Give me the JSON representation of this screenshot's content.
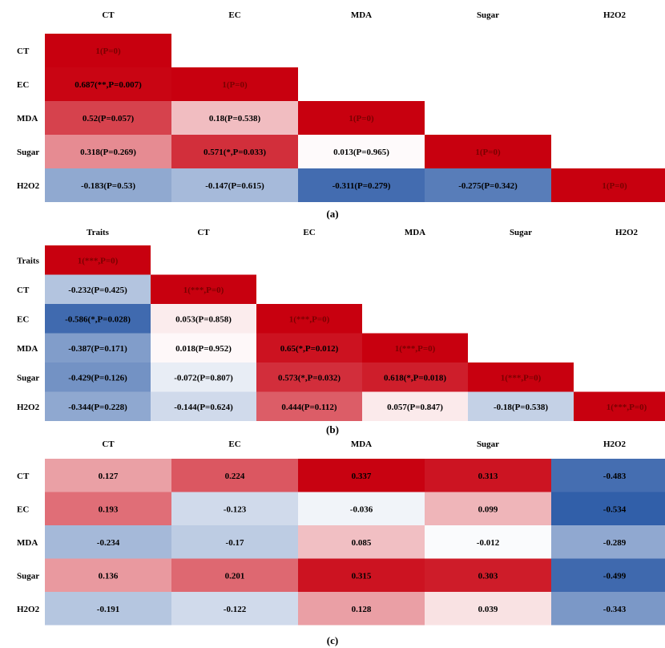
{
  "colors": {
    "positive_max": "#c8000f",
    "neutral": "#ffffff",
    "negative_max": "#2b5aa6",
    "diagonal": "#c8000f",
    "label_on_dark": "#7a0000",
    "label_default": "#000000"
  },
  "chart_data": [
    {
      "id": "a",
      "type": "heatmap",
      "shape": "lower-triangle",
      "caption": "(a)",
      "title": "",
      "color_range": [
        -0.35,
        0.7
      ],
      "columns": [
        "CT",
        "EC",
        "MDA",
        "Sugar",
        "H2O2"
      ],
      "rows": [
        "CT",
        "EC",
        "MDA",
        "Sugar",
        "H2O2"
      ],
      "cells": [
        [
          {
            "value": 1,
            "label": "1(P=0)"
          }
        ],
        [
          {
            "value": 0.687,
            "label": "0.687(**,P=0.007)"
          },
          {
            "value": 1,
            "label": "1(P=0)"
          }
        ],
        [
          {
            "value": 0.52,
            "label": "0.52(P=0.057)"
          },
          {
            "value": 0.18,
            "label": "0.18(P=0.538)"
          },
          {
            "value": 1,
            "label": "1(P=0)"
          }
        ],
        [
          {
            "value": 0.318,
            "label": "0.318(P=0.269)"
          },
          {
            "value": 0.571,
            "label": "0.571(*,P=0.033)"
          },
          {
            "value": 0.013,
            "label": "0.013(P=0.965)"
          },
          {
            "value": 1,
            "label": "1(P=0)"
          }
        ],
        [
          {
            "value": -0.183,
            "label": "-0.183(P=0.53)"
          },
          {
            "value": -0.147,
            "label": "-0.147(P=0.615)"
          },
          {
            "value": -0.311,
            "label": "-0.311(P=0.279)"
          },
          {
            "value": -0.275,
            "label": "-0.275(P=0.342)"
          },
          {
            "value": 1,
            "label": "1(P=0)"
          }
        ]
      ]
    },
    {
      "id": "b",
      "type": "heatmap",
      "shape": "lower-triangle",
      "caption": "(b)",
      "title": "",
      "color_range": [
        -0.65,
        0.7
      ],
      "columns": [
        "Traits",
        "CT",
        "EC",
        "MDA",
        "Sugar",
        "H2O2"
      ],
      "rows": [
        "Traits",
        "CT",
        "EC",
        "MDA",
        "Sugar",
        "H2O2"
      ],
      "cells": [
        [
          {
            "value": 1,
            "label": "1(***,P=0)"
          }
        ],
        [
          {
            "value": -0.232,
            "label": "-0.232(P=0.425)"
          },
          {
            "value": 1,
            "label": "1(***,P=0)"
          }
        ],
        [
          {
            "value": -0.586,
            "label": "-0.586(*,P=0.028)"
          },
          {
            "value": 0.053,
            "label": "0.053(P=0.858)"
          },
          {
            "value": 1,
            "label": "1(***,P=0)"
          }
        ],
        [
          {
            "value": -0.387,
            "label": "-0.387(P=0.171)"
          },
          {
            "value": 0.018,
            "label": "0.018(P=0.952)"
          },
          {
            "value": 0.65,
            "label": "0.65(*,P=0.012)"
          },
          {
            "value": 1,
            "label": "1(***,P=0)"
          }
        ],
        [
          {
            "value": -0.429,
            "label": "-0.429(P=0.126)"
          },
          {
            "value": -0.072,
            "label": "-0.072(P=0.807)"
          },
          {
            "value": 0.573,
            "label": "0.573(*,P=0.032)"
          },
          {
            "value": 0.618,
            "label": "0.618(*,P=0.018)"
          },
          {
            "value": 1,
            "label": "1(***,P=0)"
          }
        ],
        [
          {
            "value": -0.344,
            "label": "-0.344(P=0.228)"
          },
          {
            "value": -0.144,
            "label": "-0.144(P=0.624)"
          },
          {
            "value": 0.444,
            "label": "0.444(P=0.112)"
          },
          {
            "value": 0.057,
            "label": "0.057(P=0.847)"
          },
          {
            "value": -0.18,
            "label": "-0.18(P=0.538)"
          },
          {
            "value": 1,
            "label": "1(***,P=0)"
          }
        ]
      ]
    },
    {
      "id": "c",
      "type": "heatmap",
      "shape": "full",
      "caption": "(c)",
      "title": "",
      "color_range": [
        -0.55,
        0.34
      ],
      "columns": [
        "CT",
        "EC",
        "MDA",
        "Sugar",
        "H2O2"
      ],
      "rows": [
        "CT",
        "EC",
        "MDA",
        "Sugar",
        "H2O2"
      ],
      "cells": [
        [
          {
            "value": 0.127,
            "label": "0.127"
          },
          {
            "value": 0.224,
            "label": "0.224"
          },
          {
            "value": 0.337,
            "label": "0.337"
          },
          {
            "value": 0.313,
            "label": "0.313"
          },
          {
            "value": -0.483,
            "label": "-0.483"
          }
        ],
        [
          {
            "value": 0.193,
            "label": "0.193"
          },
          {
            "value": -0.123,
            "label": "-0.123"
          },
          {
            "value": -0.036,
            "label": "-0.036"
          },
          {
            "value": 0.099,
            "label": "0.099"
          },
          {
            "value": -0.534,
            "label": "-0.534"
          }
        ],
        [
          {
            "value": -0.234,
            "label": "-0.234"
          },
          {
            "value": -0.17,
            "label": "-0.17"
          },
          {
            "value": 0.085,
            "label": "0.085"
          },
          {
            "value": -0.012,
            "label": "-0.012"
          },
          {
            "value": -0.289,
            "label": "-0.289"
          }
        ],
        [
          {
            "value": 0.136,
            "label": "0.136"
          },
          {
            "value": 0.201,
            "label": "0.201"
          },
          {
            "value": 0.315,
            "label": "0.315"
          },
          {
            "value": 0.303,
            "label": "0.303"
          },
          {
            "value": -0.499,
            "label": "-0.499"
          }
        ],
        [
          {
            "value": -0.191,
            "label": "-0.191"
          },
          {
            "value": -0.122,
            "label": "-0.122"
          },
          {
            "value": 0.128,
            "label": "0.128"
          },
          {
            "value": 0.039,
            "label": "0.039"
          },
          {
            "value": -0.343,
            "label": "-0.343"
          }
        ]
      ]
    }
  ]
}
